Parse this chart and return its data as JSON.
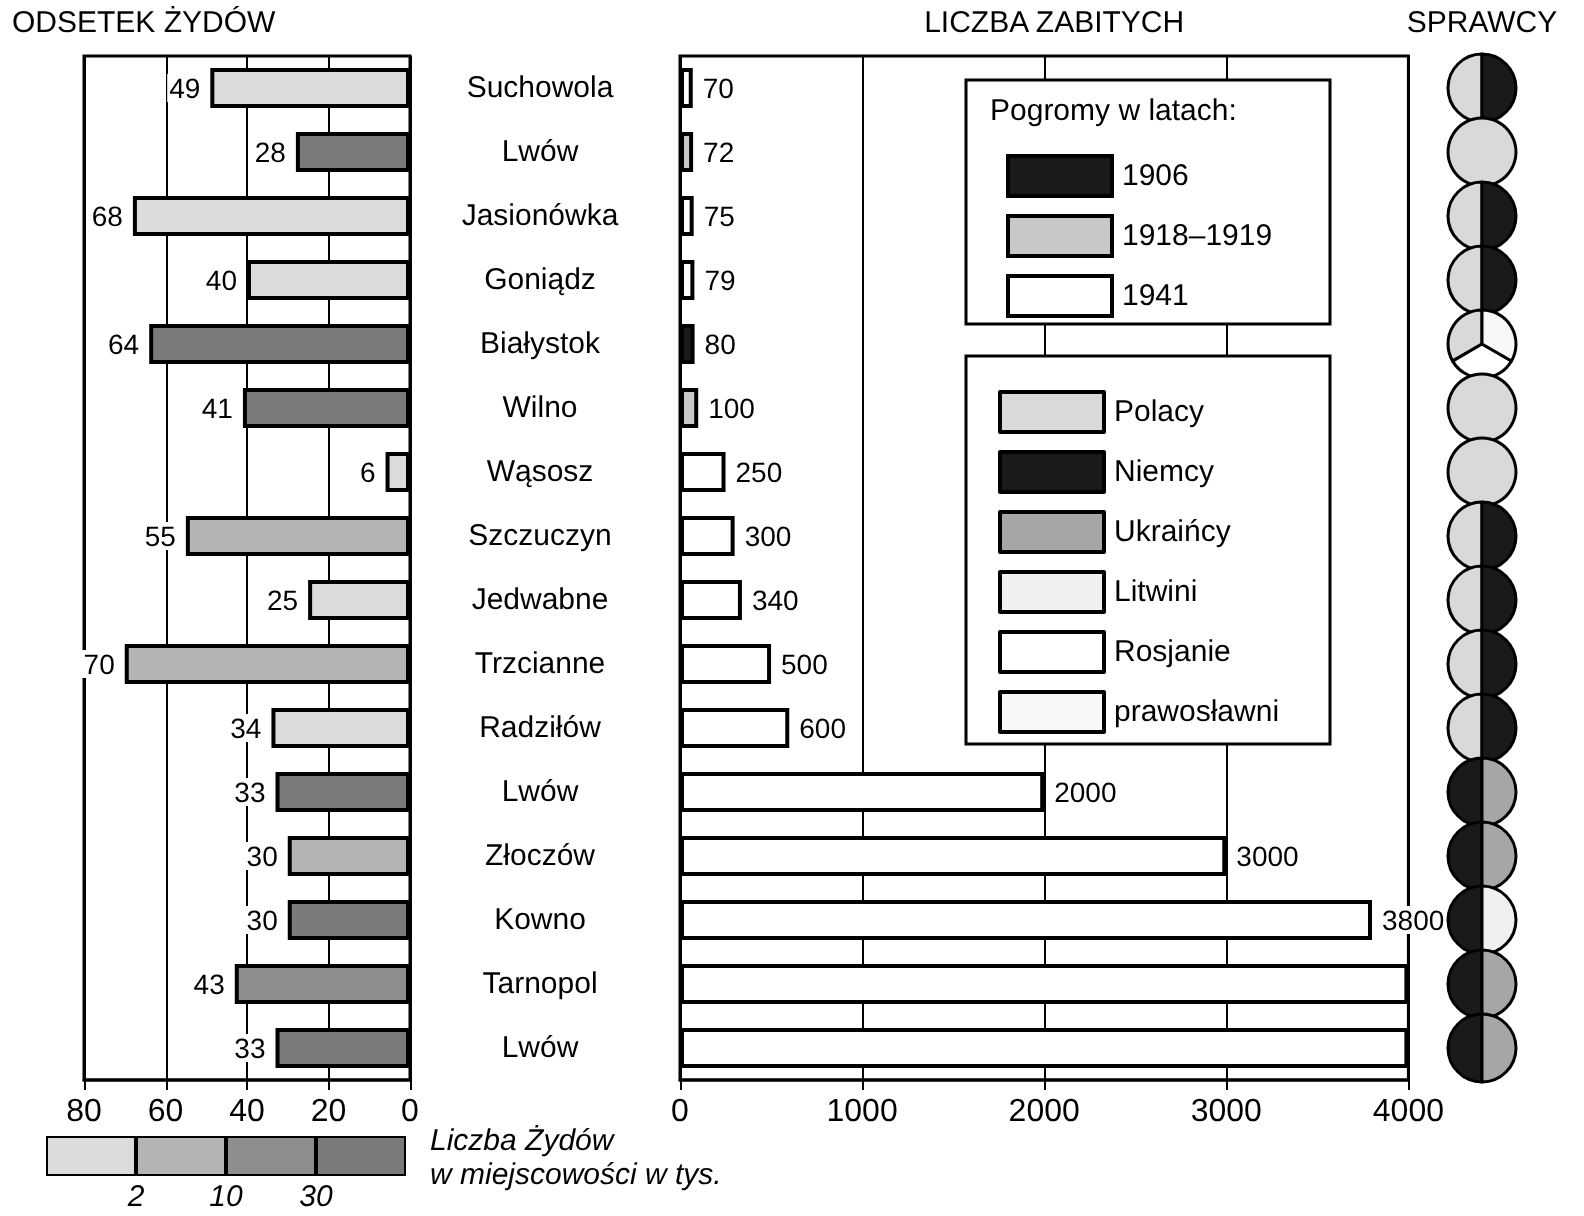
{
  "chart_data": [
    {
      "type": "bar",
      "orientation": "horizontal",
      "stacked": true,
      "title": "ODSETEK ŻYDÓW",
      "categories": [
        "Suchowola",
        "Lwów",
        "Jasionówka",
        "Goniądz",
        "Białystok",
        "Wilno",
        "Wąsosz",
        "Szczuczyn",
        "Jedwabne",
        "Trzcianne",
        "Radziłów",
        "Lwów",
        "Złoczów",
        "Kowno",
        "Tarnopol",
        "Lwów"
      ],
      "series": [
        {
          "color": "#dcdcdc",
          "values": [
            49,
            null,
            68,
            40,
            null,
            null,
            6,
            null,
            25,
            null,
            34,
            null,
            null,
            null,
            null,
            null
          ]
        },
        {
          "color": "#b4b4b4",
          "values": [
            null,
            null,
            null,
            null,
            null,
            null,
            null,
            55,
            null,
            70,
            null,
            null,
            30,
            null,
            null,
            null
          ]
        },
        {
          "color": "#8e8e8e",
          "values": [
            null,
            null,
            null,
            null,
            null,
            null,
            null,
            null,
            null,
            null,
            null,
            null,
            null,
            null,
            43,
            null
          ]
        },
        {
          "color": "#7a7a7a",
          "values": [
            null,
            28,
            null,
            null,
            64,
            41,
            null,
            null,
            null,
            null,
            null,
            33,
            null,
            30,
            null,
            33
          ]
        }
      ],
      "xlim": [
        80,
        0
      ],
      "xticks": [
        80,
        60,
        40,
        20,
        0
      ],
      "grid": "x",
      "data_labels": true,
      "clabel": "Liczba Żydów\nw miejscowości w tys.",
      "annotations": [
        "2",
        "10",
        "30"
      ]
    },
    {
      "type": "bar",
      "orientation": "horizontal",
      "stacked": true,
      "title": "LICZBA ZABITYCH",
      "categories": [
        null,
        null,
        null,
        null,
        null,
        null,
        null,
        null,
        null,
        null,
        null,
        null,
        null,
        null,
        null,
        null
      ],
      "tick_labels": "x",
      "legend_title": "Pogromy w latach:",
      "legend": "top right",
      "series": [
        {
          "name": "1906",
          "color": "#1a1a1a",
          "values": [
            null,
            null,
            null,
            null,
            80,
            null,
            null,
            null,
            null,
            null,
            null,
            null,
            null,
            null,
            null,
            null
          ],
          "value_labels": [
            null,
            null,
            null,
            null,
            "80",
            null,
            null,
            null,
            null,
            null,
            null,
            null,
            null,
            null,
            null,
            null
          ]
        },
        {
          "name": "1918–1919",
          "color": "#c8c8c8",
          "values": [
            null,
            72,
            null,
            null,
            null,
            100,
            null,
            null,
            null,
            null,
            null,
            null,
            null,
            null,
            null,
            null
          ],
          "value_labels": [
            null,
            "72",
            null,
            null,
            null,
            "100",
            null,
            null,
            null,
            null,
            null,
            null,
            null,
            null,
            null,
            null
          ]
        },
        {
          "name": "1941",
          "color": "#ffffff",
          "values": [
            70,
            null,
            75,
            79,
            null,
            null,
            250,
            300,
            340,
            500,
            600,
            2000,
            3000,
            3800,
            4000,
            4000
          ],
          "value_labels": [
            "70",
            null,
            "75",
            "79",
            null,
            null,
            "250",
            "300",
            "340",
            "500",
            "600",
            "2000",
            "3000",
            "3800",
            null,
            null
          ]
        }
      ],
      "xlim": [
        0,
        4000
      ],
      "xticks": [
        0,
        1000,
        2000,
        3000,
        4000
      ],
      "grid": "x"
    },
    {
      "type": "pie",
      "title": "SPRAWCY",
      "categories": [
        "Polacy",
        "Niemcy",
        "Ukraińcy",
        "Litwini",
        "Rosjanie",
        "prawosławni"
      ],
      "colors": [
        "#d9d9d9",
        "#1a1a1a",
        "#a6a6a6",
        "#f0f0f0",
        "#ffffff",
        "#f8f8f8"
      ],
      "legend": "left",
      "series": [
        {
          "values": [
            50,
            50,
            0,
            0,
            0,
            0
          ]
        },
        {
          "values": [
            100,
            0,
            0,
            0,
            0,
            0
          ]
        },
        {
          "values": [
            50,
            50,
            0,
            0,
            0,
            0
          ]
        },
        {
          "values": [
            50,
            50,
            0,
            0,
            0,
            0
          ]
        },
        {
          "values": [
            33.4,
            0,
            0,
            0,
            33.3,
            33.3
          ]
        },
        {
          "values": [
            100,
            0,
            0,
            0,
            0,
            0
          ]
        },
        {
          "values": [
            100,
            0,
            0,
            0,
            0,
            0
          ]
        },
        {
          "values": [
            50,
            50,
            0,
            0,
            0,
            0
          ]
        },
        {
          "values": [
            50,
            50,
            0,
            0,
            0,
            0
          ]
        },
        {
          "values": [
            50,
            50,
            0,
            0,
            0,
            0
          ]
        },
        {
          "values": [
            50,
            50,
            0,
            0,
            0,
            0
          ]
        },
        {
          "values": [
            0,
            50,
            50,
            0,
            0,
            0
          ]
        },
        {
          "values": [
            0,
            50,
            50,
            0,
            0,
            0
          ]
        },
        {
          "values": [
            0,
            50,
            0,
            50,
            0,
            0
          ]
        },
        {
          "values": [
            0,
            50,
            50,
            0,
            0,
            0
          ]
        },
        {
          "values": [
            0,
            50,
            50,
            0,
            0,
            0
          ]
        }
      ]
    }
  ]
}
